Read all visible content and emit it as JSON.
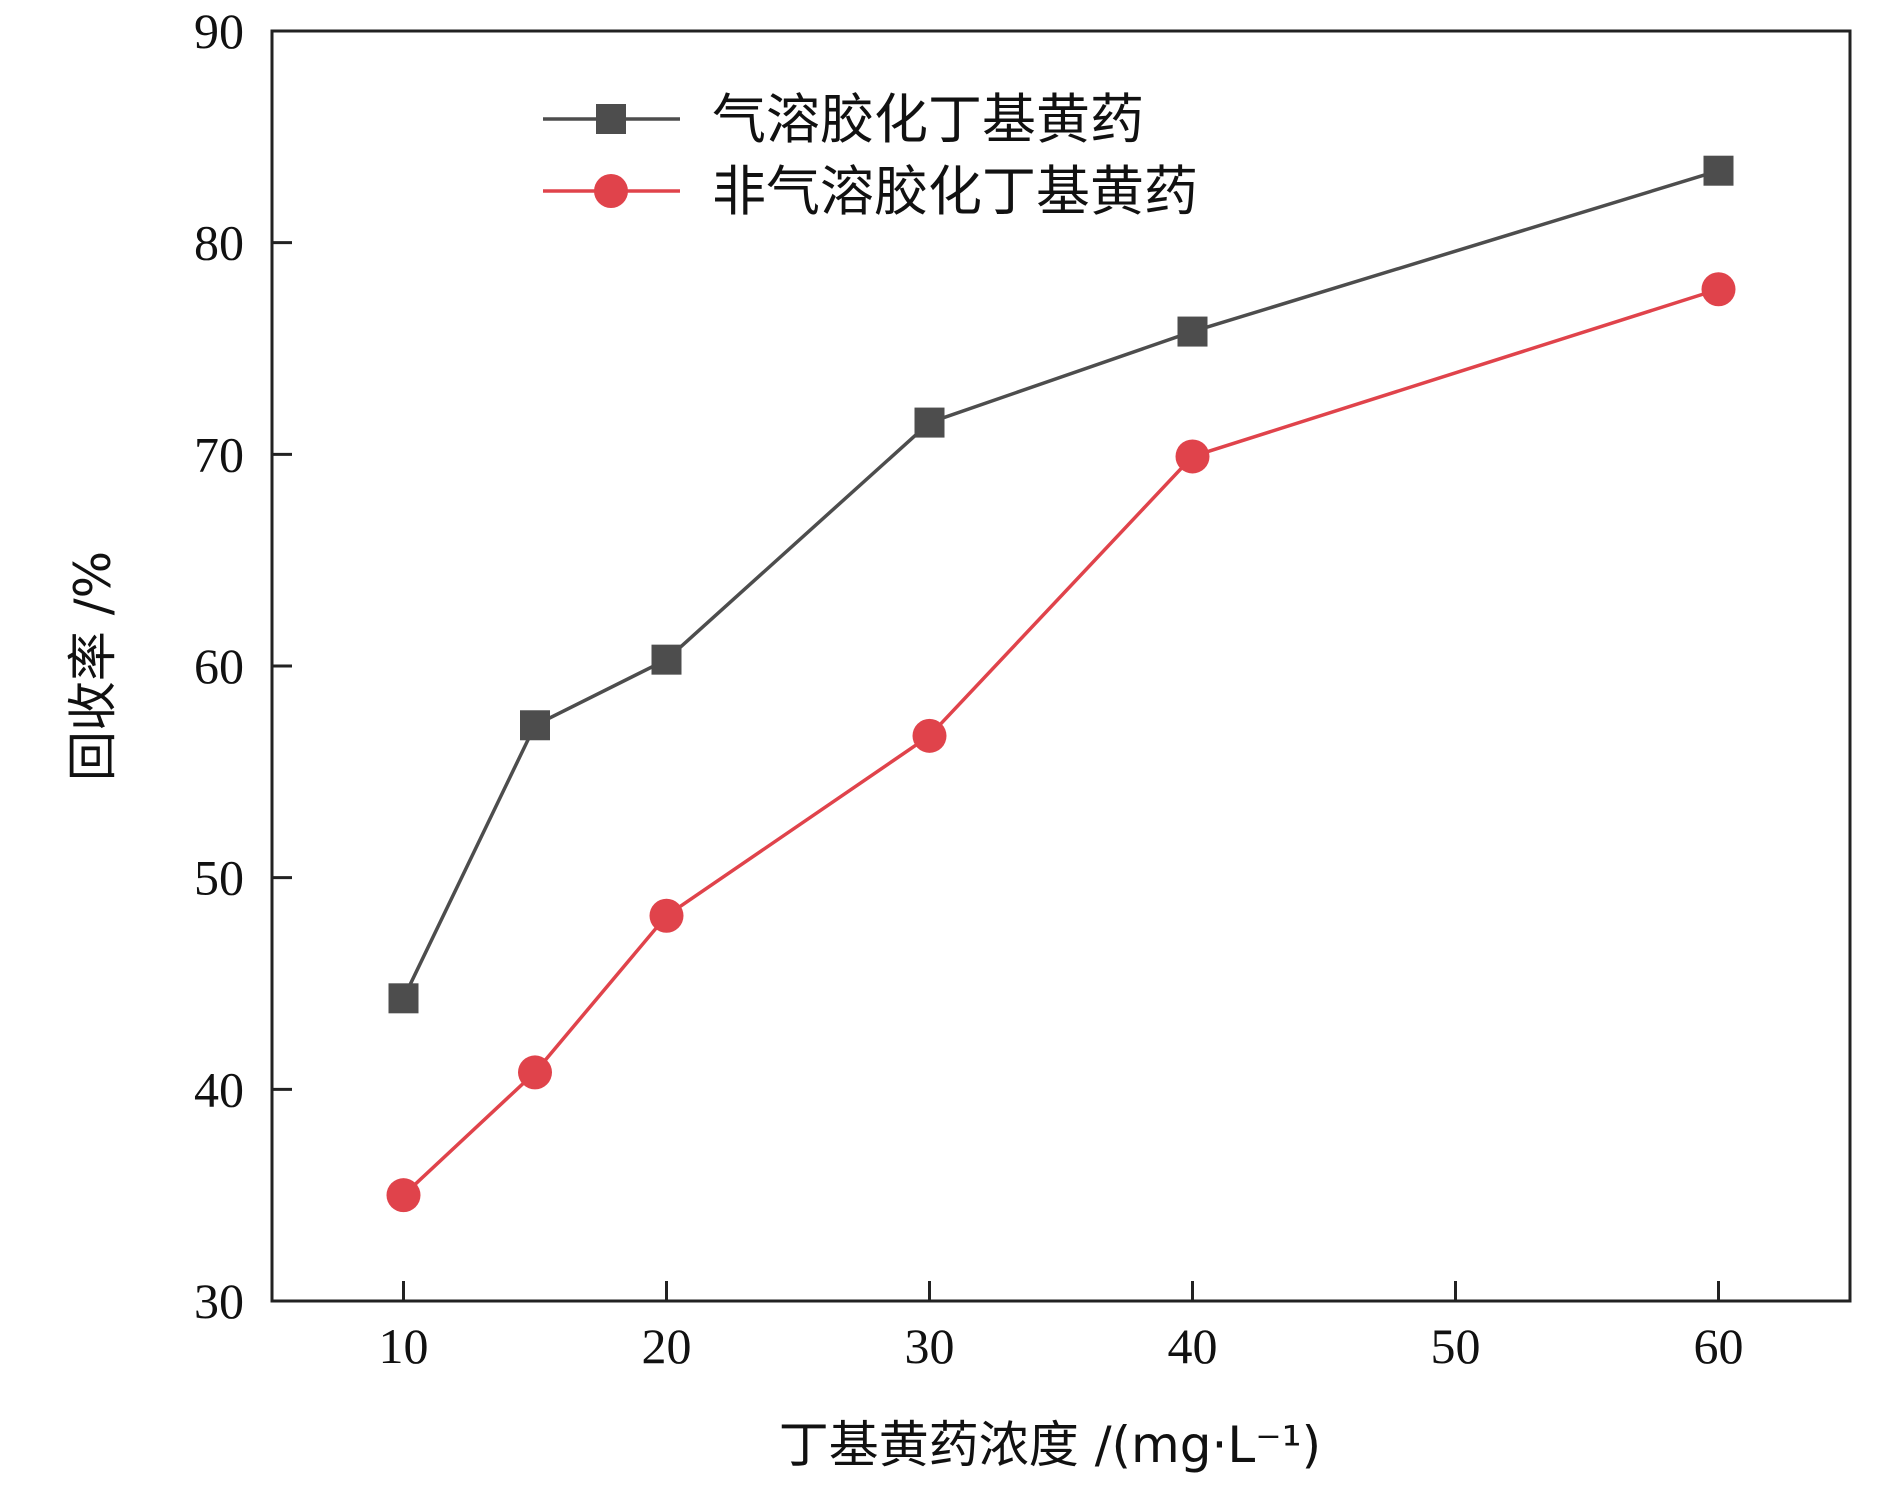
{
  "chart_data": {
    "type": "line",
    "title": "",
    "xlabel": "丁基黄药浓度 /(mg·L⁻¹)",
    "ylabel": "回收率 /%",
    "xlim": [
      5,
      65
    ],
    "ylim": [
      30,
      90
    ],
    "xticks": [
      10,
      20,
      30,
      40,
      50,
      60
    ],
    "yticks": [
      30,
      40,
      50,
      60,
      70,
      80,
      90
    ],
    "grid": false,
    "legend_position": "top-center",
    "series": [
      {
        "name": "气溶胶化丁基黄药",
        "color": "#4d4d4d",
        "marker": "square",
        "x": [
          10,
          15,
          20,
          30,
          40,
          60
        ],
        "y": [
          44.3,
          57.2,
          60.3,
          71.5,
          75.8,
          83.4
        ]
      },
      {
        "name": "非气溶胶化丁基黄药",
        "color": "#e0434b",
        "marker": "circle",
        "x": [
          10,
          15,
          20,
          30,
          40,
          60
        ],
        "y": [
          35.0,
          40.8,
          48.2,
          56.7,
          69.9,
          77.8
        ]
      }
    ]
  }
}
